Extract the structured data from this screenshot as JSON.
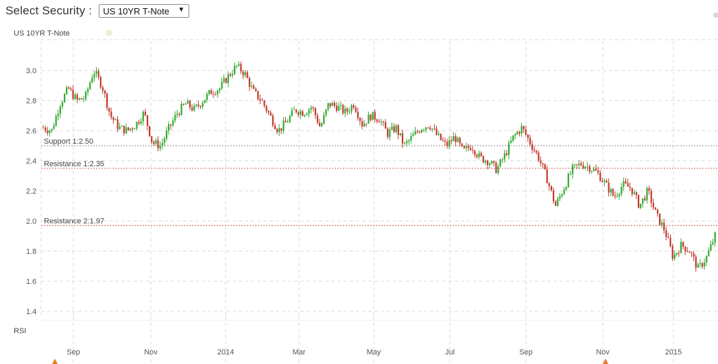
{
  "header": {
    "select_label": "Select Security :",
    "selected_security": "US 10YR T-Note",
    "dropdown_arrow": "▼"
  },
  "chart_data": {
    "type": "candlestick",
    "title": "US 10YR T-Note",
    "legend_marker_color": "#e8f0c8",
    "y_ticks": [
      "3.0",
      "2.8",
      "2.6",
      "2.4",
      "2.2",
      "2.0",
      "1.8",
      "1.6",
      "1.4"
    ],
    "x_ticks": [
      "Sep",
      "Nov",
      "2014",
      "Mar",
      "May",
      "Jul",
      "Sep",
      "Nov",
      "2015"
    ],
    "ylim": [
      1.4,
      3.1
    ],
    "grid": true,
    "colors": {
      "up": "#2eaa2e",
      "down": "#c0392b",
      "grid": "#d9d9d9",
      "level": "#d9534f",
      "support": "#888888"
    },
    "levels": [
      {
        "label": "Support 1:2.50",
        "value": 2.5,
        "kind": "support"
      },
      {
        "label": "Resistance 1:2.35",
        "value": 2.35,
        "kind": "resistance"
      },
      {
        "label": "Resistance 2:1.97",
        "value": 1.97,
        "kind": "resistance"
      }
    ],
    "close_series": [
      2.62,
      2.6,
      2.78,
      2.88,
      2.8,
      2.82,
      3.0,
      2.9,
      2.7,
      2.62,
      2.6,
      2.64,
      2.72,
      2.52,
      2.5,
      2.62,
      2.72,
      2.78,
      2.74,
      2.8,
      2.86,
      2.88,
      2.96,
      3.03,
      2.98,
      2.86,
      2.8,
      2.7,
      2.6,
      2.66,
      2.74,
      2.72,
      2.76,
      2.62,
      2.78,
      2.76,
      2.72,
      2.78,
      2.64,
      2.7,
      2.68,
      2.58,
      2.62,
      2.5,
      2.56,
      2.62,
      2.64,
      2.56,
      2.5,
      2.56,
      2.46,
      2.5,
      2.42,
      2.4,
      2.34,
      2.44,
      2.56,
      2.62,
      2.52,
      2.42,
      2.28,
      2.1,
      2.22,
      2.34,
      2.38,
      2.36,
      2.32,
      2.24,
      2.16,
      2.24,
      2.22,
      2.1,
      2.2,
      2.04,
      1.94,
      1.76,
      1.84,
      1.8,
      1.68,
      1.76,
      1.9
    ],
    "rsi_label": "RSI"
  }
}
